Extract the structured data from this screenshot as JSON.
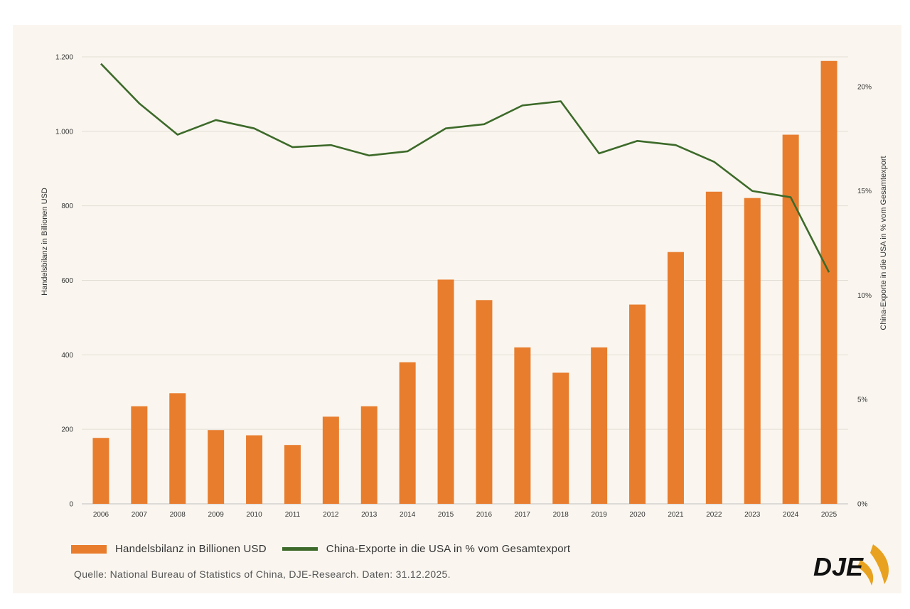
{
  "chart_data": {
    "type": "bar+line",
    "categories": [
      "2006",
      "2007",
      "2008",
      "2009",
      "2010",
      "2011",
      "2012",
      "2013",
      "2014",
      "2015",
      "2016",
      "2017",
      "2018",
      "2019",
      "2020",
      "2021",
      "2022",
      "2023",
      "2024",
      "2025"
    ],
    "series": [
      {
        "name": "Handelsbilanz in Billionen USD",
        "type": "bar",
        "axis": "left",
        "color": "#e87d2e",
        "values": [
          177,
          262,
          297,
          198,
          184,
          158,
          234,
          262,
          380,
          602,
          547,
          420,
          352,
          420,
          535,
          676,
          838,
          821,
          991,
          1189
        ]
      },
      {
        "name": "China-Exporte in die USA in % vom Gesamtexport",
        "type": "line",
        "axis": "right",
        "color": "#3d6a2a",
        "values": [
          21.1,
          19.2,
          17.7,
          18.4,
          18.0,
          17.1,
          17.2,
          16.7,
          16.9,
          18.0,
          18.2,
          19.1,
          19.3,
          16.8,
          17.4,
          17.2,
          16.4,
          15.0,
          14.7,
          11.1
        ]
      }
    ],
    "left_axis": {
      "label": "Handelsbilanz in Billionen USD",
      "ylim": [
        0,
        1200
      ],
      "ticks": [
        0,
        200,
        400,
        600,
        800,
        1000,
        1200
      ],
      "tick_labels": [
        "0",
        "200",
        "400",
        "600",
        "800",
        "1.000",
        "1.200"
      ]
    },
    "right_axis": {
      "label": "China-Exporte in die USA in % vom Gesamtexport",
      "ylim": [
        0,
        21.43
      ],
      "ticks": [
        0,
        5,
        10,
        15,
        20
      ],
      "tick_labels": [
        "0%",
        "5%",
        "10%",
        "15%",
        "20%"
      ]
    },
    "grid": true,
    "legend_position": "bottom"
  },
  "legend": {
    "bar_label": "Handelsbilanz in Billionen USD",
    "line_label": "China-Exporte in die USA in % vom Gesamtexport"
  },
  "source": "Quelle: National Bureau of Statistics of China, DJE-Research. Daten: 31.12.2025.",
  "logo_text": "DJE",
  "colors": {
    "bar": "#e87d2e",
    "line": "#3d6a2a",
    "logo_accent": "#e8a21f",
    "background": "#faf6ef"
  }
}
